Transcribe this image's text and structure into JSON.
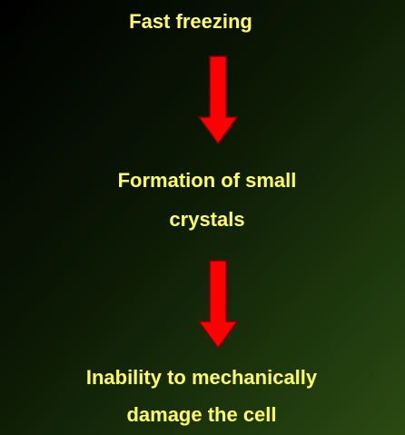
{
  "nodes": [
    {
      "lines": [
        "Fast freezing"
      ]
    },
    {
      "lines": [
        "Formation of small",
        "crystals"
      ]
    },
    {
      "lines": [
        "Inability to mechanically",
        "damage the cell"
      ]
    }
  ]
}
